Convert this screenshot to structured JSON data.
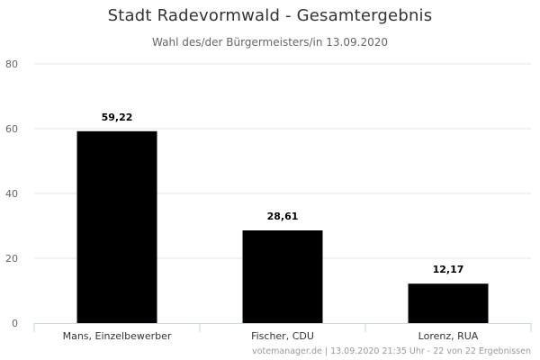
{
  "header": {
    "title": "Stadt Radevormwald - Gesamtergebnis",
    "subtitle": "Wahl des/der Bürgermeisters/in 13.09.2020"
  },
  "footer": {
    "credit": "votemanager.de | 13.09.2020 21:35 Uhr - 22 von 22 Ergebnissen"
  },
  "colors": {
    "bar": "#000000",
    "grid": "#e6e6e6",
    "axis": "#ccd6eb"
  },
  "chart_data": {
    "type": "bar",
    "categories": [
      "Mans, Einzelbewerber",
      "Fischer, CDU",
      "Lorenz, RUA"
    ],
    "values": [
      59.22,
      28.61,
      12.17
    ],
    "value_labels": [
      "59,22",
      "28,61",
      "12,17"
    ],
    "yticks": [
      0,
      20,
      40,
      60,
      80
    ],
    "ylim": [
      0,
      80
    ],
    "grid": true,
    "legend": "none"
  }
}
